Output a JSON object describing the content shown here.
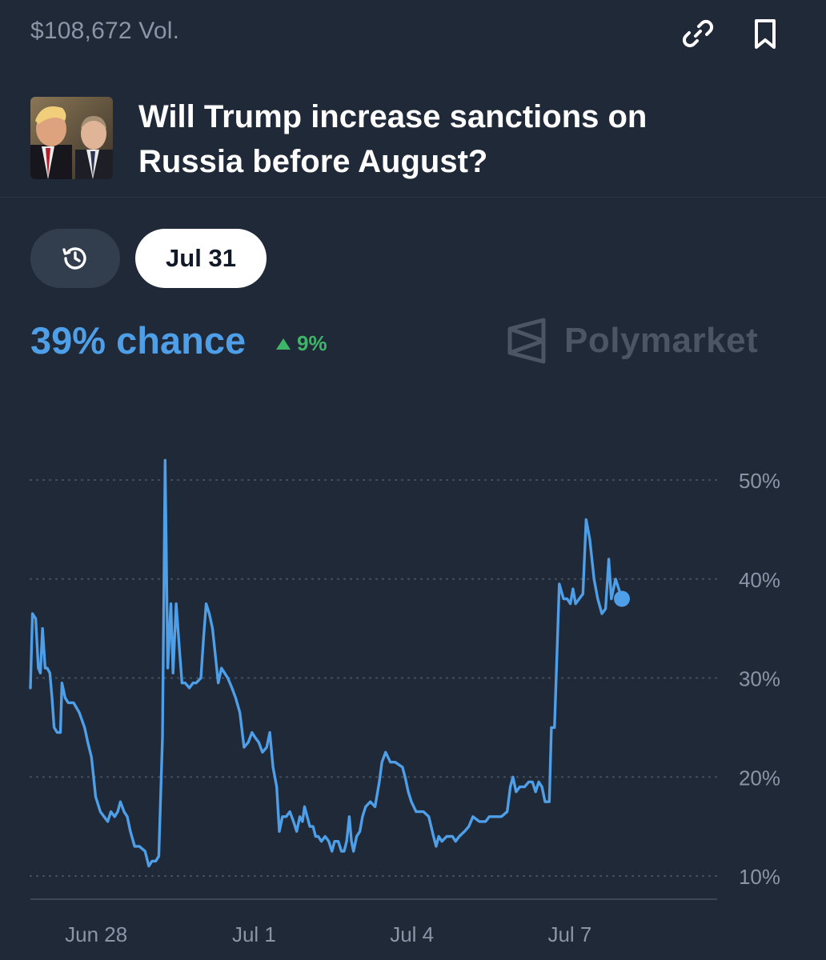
{
  "market": {
    "volume": "$108,672 Vol.",
    "title": "Will Trump increase sanctions on Russia before August?",
    "selected_date": "Jul 31",
    "chance": "39% chance",
    "delta": "9%",
    "brand": "Polymarket"
  },
  "icons": {
    "link": "link-icon",
    "bookmark": "bookmark-icon",
    "history": "history-icon",
    "brand_logo": "polymarket-logo",
    "delta_arrow": "triangle-up-icon"
  },
  "colors": {
    "background": "#1f2937",
    "line": "#4e9ee8",
    "delta_up": "#3fb56a",
    "grid": "#475466",
    "axis_text": "#8a96a8"
  },
  "chart_data": {
    "type": "line",
    "title": "",
    "xlabel": "",
    "ylabel": "",
    "ylim": [
      10,
      50
    ],
    "yticks": [
      "50%",
      "40%",
      "30%",
      "20%",
      "10%"
    ],
    "ytick_values": [
      50,
      40,
      30,
      20,
      10
    ],
    "xticks": [
      "Jun 28",
      "Jul 1",
      "Jul 4",
      "Jul 7"
    ],
    "xtick_values": [
      1.25,
      4.25,
      7.25,
      10.25
    ],
    "x_range": [
      0,
      13.05
    ],
    "grid": "dotted horizontal",
    "series": [
      {
        "values": [
          [
            0.0,
            29
          ],
          [
            0.04,
            36.5
          ],
          [
            0.1,
            36
          ],
          [
            0.15,
            31
          ],
          [
            0.19,
            30.5
          ],
          [
            0.23,
            35
          ],
          [
            0.28,
            31
          ],
          [
            0.32,
            31
          ],
          [
            0.37,
            30.5
          ],
          [
            0.41,
            28
          ],
          [
            0.45,
            25
          ],
          [
            0.51,
            24.5
          ],
          [
            0.57,
            24.5
          ],
          [
            0.6,
            29.5
          ],
          [
            0.66,
            28
          ],
          [
            0.72,
            27.5
          ],
          [
            0.82,
            27.5
          ],
          [
            0.93,
            26.5
          ],
          [
            1.03,
            25
          ],
          [
            1.09,
            23.5
          ],
          [
            1.16,
            22
          ],
          [
            1.24,
            18
          ],
          [
            1.33,
            16.5
          ],
          [
            1.4,
            16
          ],
          [
            1.47,
            15.5
          ],
          [
            1.53,
            16.5
          ],
          [
            1.6,
            16
          ],
          [
            1.66,
            16.5
          ],
          [
            1.71,
            17.5
          ],
          [
            1.78,
            16.5
          ],
          [
            1.84,
            16
          ],
          [
            1.9,
            14.5
          ],
          [
            1.98,
            13
          ],
          [
            2.07,
            13
          ],
          [
            2.18,
            12.5
          ],
          [
            2.25,
            11
          ],
          [
            2.31,
            11.5
          ],
          [
            2.38,
            11.5
          ],
          [
            2.44,
            12
          ],
          [
            2.51,
            24
          ],
          [
            2.56,
            52
          ],
          [
            2.61,
            31
          ],
          [
            2.67,
            37.5
          ],
          [
            2.71,
            30.5
          ],
          [
            2.77,
            37.5
          ],
          [
            2.83,
            33
          ],
          [
            2.88,
            29.5
          ],
          [
            2.94,
            29.5
          ],
          [
            3.02,
            29
          ],
          [
            3.09,
            29.5
          ],
          [
            3.15,
            29.5
          ],
          [
            3.24,
            30
          ],
          [
            3.29,
            34
          ],
          [
            3.34,
            37.5
          ],
          [
            3.4,
            36.5
          ],
          [
            3.46,
            35
          ],
          [
            3.51,
            32.5
          ],
          [
            3.57,
            29.5
          ],
          [
            3.63,
            31
          ],
          [
            3.69,
            30.5
          ],
          [
            3.75,
            30
          ],
          [
            3.83,
            29
          ],
          [
            3.9,
            28
          ],
          [
            3.98,
            26.5
          ],
          [
            4.06,
            23
          ],
          [
            4.14,
            23.5
          ],
          [
            4.21,
            24.5
          ],
          [
            4.27,
            24
          ],
          [
            4.34,
            23.5
          ],
          [
            4.41,
            22.5
          ],
          [
            4.49,
            23
          ],
          [
            4.55,
            24.5
          ],
          [
            4.61,
            21
          ],
          [
            4.68,
            19
          ],
          [
            4.73,
            14.5
          ],
          [
            4.79,
            16
          ],
          [
            4.86,
            16
          ],
          [
            4.93,
            16.5
          ],
          [
            5.0,
            15.5
          ],
          [
            5.06,
            14.5
          ],
          [
            5.12,
            16
          ],
          [
            5.17,
            15.5
          ],
          [
            5.21,
            17
          ],
          [
            5.26,
            16
          ],
          [
            5.31,
            15
          ],
          [
            5.37,
            15
          ],
          [
            5.42,
            14
          ],
          [
            5.47,
            14
          ],
          [
            5.53,
            13.5
          ],
          [
            5.6,
            14
          ],
          [
            5.67,
            13.5
          ],
          [
            5.73,
            12.5
          ],
          [
            5.78,
            13.5
          ],
          [
            5.85,
            13.5
          ],
          [
            5.91,
            12.5
          ],
          [
            5.96,
            12.5
          ],
          [
            6.01,
            13.5
          ],
          [
            6.06,
            16
          ],
          [
            6.1,
            13.5
          ],
          [
            6.14,
            12.5
          ],
          [
            6.2,
            14
          ],
          [
            6.26,
            14.5
          ],
          [
            6.31,
            16
          ],
          [
            6.37,
            17
          ],
          [
            6.46,
            17.5
          ],
          [
            6.55,
            17
          ],
          [
            6.63,
            19.5
          ],
          [
            6.68,
            21.5
          ],
          [
            6.75,
            22.5
          ],
          [
            6.84,
            21.5
          ],
          [
            6.93,
            21.5
          ],
          [
            7.07,
            21
          ],
          [
            7.12,
            20
          ],
          [
            7.18,
            18.5
          ],
          [
            7.24,
            17.5
          ],
          [
            7.33,
            16.5
          ],
          [
            7.47,
            16.5
          ],
          [
            7.57,
            16
          ],
          [
            7.66,
            14
          ],
          [
            7.71,
            13
          ],
          [
            7.76,
            14
          ],
          [
            7.82,
            13.5
          ],
          [
            7.91,
            14
          ],
          [
            8.02,
            14
          ],
          [
            8.08,
            13.5
          ],
          [
            8.15,
            14
          ],
          [
            8.25,
            14.5
          ],
          [
            8.33,
            15
          ],
          [
            8.41,
            16
          ],
          [
            8.53,
            15.5
          ],
          [
            8.65,
            15.5
          ],
          [
            8.72,
            16
          ],
          [
            8.82,
            16
          ],
          [
            8.95,
            16
          ],
          [
            9.06,
            16.5
          ],
          [
            9.12,
            19
          ],
          [
            9.17,
            20
          ],
          [
            9.23,
            18.5
          ],
          [
            9.3,
            19
          ],
          [
            9.39,
            19
          ],
          [
            9.47,
            19.5
          ],
          [
            9.54,
            19.5
          ],
          [
            9.6,
            18.5
          ],
          [
            9.66,
            19.5
          ],
          [
            9.72,
            19
          ],
          [
            9.78,
            17.5
          ],
          [
            9.86,
            17.5
          ],
          [
            9.9,
            25
          ],
          [
            9.96,
            25
          ],
          [
            10.05,
            39.5
          ],
          [
            10.13,
            38
          ],
          [
            10.2,
            38
          ],
          [
            10.26,
            37.5
          ],
          [
            10.31,
            39
          ],
          [
            10.36,
            37.5
          ],
          [
            10.43,
            38
          ],
          [
            10.5,
            38.5
          ],
          [
            10.56,
            46
          ],
          [
            10.63,
            44
          ],
          [
            10.71,
            40
          ],
          [
            10.78,
            38
          ],
          [
            10.86,
            36.5
          ],
          [
            10.93,
            37
          ],
          [
            10.99,
            42
          ],
          [
            11.04,
            38
          ],
          [
            11.12,
            40
          ],
          [
            11.18,
            39
          ],
          [
            11.24,
            38
          ]
        ]
      }
    ]
  }
}
